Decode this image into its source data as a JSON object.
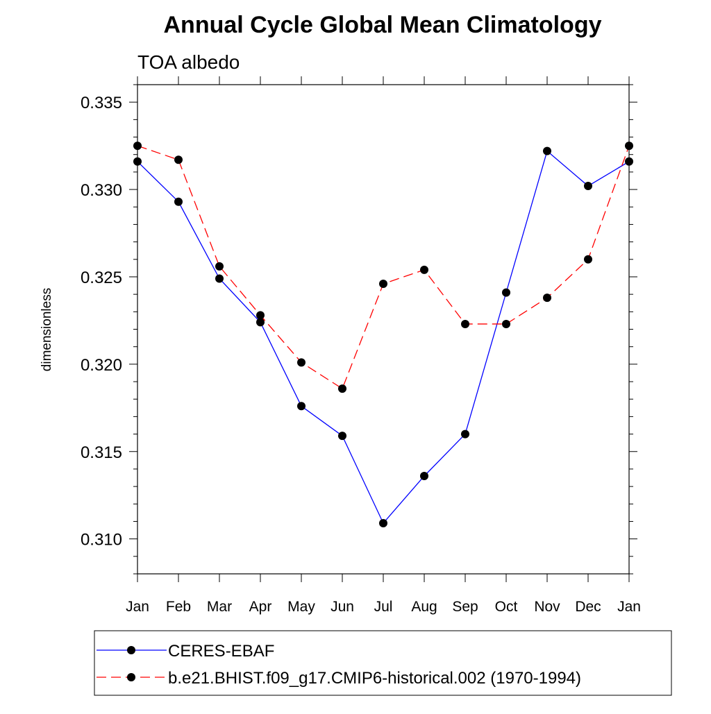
{
  "chart_data": {
    "type": "line",
    "title": "Annual Cycle Global Mean Climatology",
    "subtitle": "TOA albedo",
    "xlabel": "",
    "ylabel": "dimensionless",
    "categories": [
      "Jan",
      "Feb",
      "Mar",
      "Apr",
      "May",
      "Jun",
      "Jul",
      "Aug",
      "Sep",
      "Oct",
      "Nov",
      "Dec",
      "Jan"
    ],
    "ylim": [
      0.308,
      0.336
    ],
    "yticks": [
      "0.310",
      "0.315",
      "0.320",
      "0.325",
      "0.330",
      "0.335"
    ],
    "ytick_values": [
      0.31,
      0.315,
      0.32,
      0.325,
      0.33,
      0.335
    ],
    "grid": false,
    "legend_position": "bottom",
    "series": [
      {
        "name": "CERES-EBAF",
        "color": "#0000ff",
        "dash": "solid",
        "values": [
          0.3316,
          0.3293,
          0.3249,
          0.3224,
          0.3176,
          0.3159,
          0.3109,
          0.3136,
          0.316,
          0.3241,
          0.3322,
          0.3302,
          0.3316
        ]
      },
      {
        "name": "b.e21.BHIST.f09_g17.CMIP6-historical.002 (1970-1994)",
        "color": "#ff0000",
        "dash": "dashed",
        "values": [
          0.3325,
          0.3317,
          0.3256,
          0.3228,
          0.3201,
          0.3186,
          0.3246,
          0.3254,
          0.3223,
          0.3223,
          0.3238,
          0.326,
          0.3325
        ]
      }
    ]
  }
}
